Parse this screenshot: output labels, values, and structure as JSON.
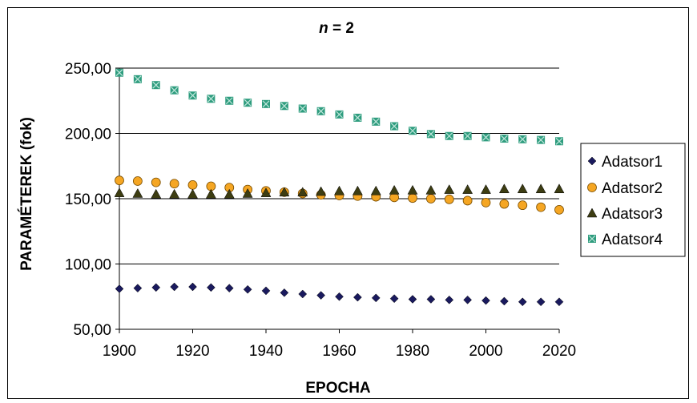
{
  "chart_data": {
    "type": "scatter",
    "title_var": "n",
    "title_rest": " = 2",
    "xlabel": "EPOCHA",
    "ylabel": "PARAMÉTEREK (fok)",
    "xlim": [
      1900,
      2020
    ],
    "ylim": [
      50,
      250
    ],
    "x_ticks": [
      1900,
      1920,
      1940,
      1960,
      1980,
      2000,
      2020
    ],
    "y_ticks": [
      50,
      100,
      150,
      200,
      250
    ],
    "y_tick_labels": [
      "50,00",
      "100,00",
      "150,00",
      "200,00",
      "250,00"
    ],
    "grid_y": true,
    "legend_position": "right",
    "x": [
      1900,
      1905,
      1910,
      1915,
      1920,
      1925,
      1930,
      1935,
      1940,
      1945,
      1950,
      1955,
      1960,
      1965,
      1970,
      1975,
      1980,
      1985,
      1990,
      1995,
      2000,
      2005,
      2010,
      2015,
      2020
    ],
    "series": [
      {
        "name": "Adatsor1",
        "marker": "diamond",
        "color": "#1a1a5e",
        "values": [
          81,
          81.5,
          82,
          82.5,
          82.5,
          82,
          81.5,
          80.5,
          79.5,
          78,
          77,
          76,
          75,
          74.5,
          74,
          73.5,
          73,
          73,
          72.5,
          72.5,
          72,
          71.5,
          71,
          71,
          71
        ]
      },
      {
        "name": "Adatsor2",
        "marker": "circle",
        "color": "#f5a623",
        "values": [
          164,
          163.5,
          162.5,
          161.5,
          160.5,
          159.5,
          158.5,
          157,
          156,
          155,
          154,
          153,
          152.5,
          152,
          151.5,
          151,
          150.5,
          150,
          149.5,
          148.5,
          147,
          146,
          145,
          143.5,
          141.5
        ]
      },
      {
        "name": "Adatsor3",
        "marker": "triangle",
        "color": "#3d3d12",
        "values": [
          154.5,
          154,
          153.5,
          153.5,
          153.5,
          153.5,
          153.5,
          154,
          154.5,
          155,
          155,
          155.5,
          156,
          156,
          156,
          156.5,
          156.5,
          156.5,
          157,
          157,
          157,
          157.5,
          157.5,
          157.5,
          157.5
        ]
      },
      {
        "name": "Adatsor4",
        "marker": "square",
        "color": "#2e9c7e",
        "values": [
          246.5,
          241.5,
          237,
          233,
          229,
          226.5,
          225,
          223.5,
          222.5,
          221,
          219,
          217,
          214.5,
          212,
          209,
          205.5,
          202,
          199.5,
          198,
          198,
          197,
          196,
          195.5,
          195,
          194
        ]
      }
    ]
  }
}
